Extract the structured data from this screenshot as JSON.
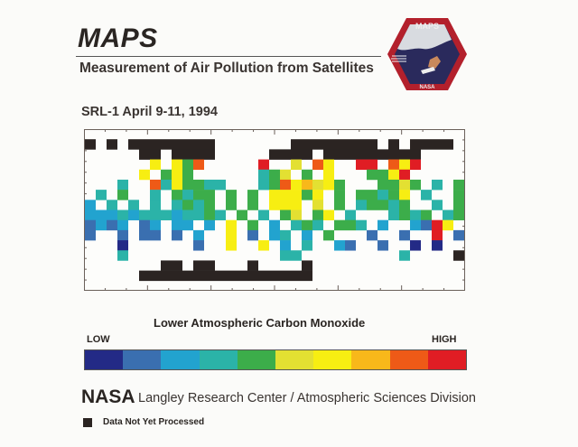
{
  "header": {
    "title": "MAPS",
    "subtitle": "Measurement of Air Pollution from Satellites",
    "mission": "SRL-1   April 9-11, 1994",
    "logo": {
      "top_text": "MAPS",
      "bottom_text": "NASA",
      "colors": {
        "border": "#b3202c",
        "space": "#2a2a5c"
      }
    }
  },
  "map": {
    "legend_codes": "K = data not yet processed; 0-9 = colorbar level low to high; . = no data",
    "grid": [
      "...................................",
      "K.K.KKKKKKKK.......KKKKKKKK.K.KKKK.",
      ".....KK.KKKK.....KKKK.KKKKKKKKK....",
      "......6.648.....9..5.86..99.869....",
      ".....6.464......345.4.6...4469.....",
      "...3..8364433...34867564...4454.3.4",
      ".3.4..3.4344.4.4.66646.4.44346.3..4",
      "2.3.3.3.3434.4.4.666.5.4.34434..3.4",
      "2223233323343.4.3.45.46.3...3434.34",
      "1212.12.22.2.6.4.2.343.443.2..2196.",
      "1..1.11.1.2..6.1.23.2.4...1..1..9.1",
      "...0......1..6..6.2.3..21..1..0.0..",
      "...3..............33.........3....K",
      ".......KK.KK...K....K..............",
      ".....KKKKKKKKKKKKKKKK..............",
      "..................................."
    ]
  },
  "colorbar": {
    "title": "Lower Atmospheric Carbon Monoxide",
    "low_label": "LOW",
    "high_label": "HIGH",
    "colors": [
      "#232a86",
      "#3a6fb0",
      "#22a3cf",
      "#2bb3a8",
      "#3cad4a",
      "#e3e032",
      "#f7ee12",
      "#f8b81a",
      "#ee5a17",
      "#e01d24"
    ],
    "no_data_color": "#2b2422"
  },
  "footer": {
    "agency": "NASA",
    "organization": "Langley Research Center / Atmospheric Sciences Division",
    "legend_label": "Data Not Yet Processed"
  }
}
